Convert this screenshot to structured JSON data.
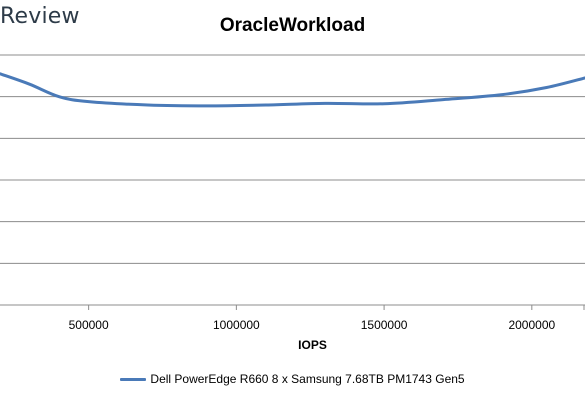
{
  "logo": {
    "text": "Review"
  },
  "chart_data": {
    "type": "line",
    "title": "OracleWorkload",
    "xlabel": "IOPS",
    "ylabel": "",
    "xlim": [
      200000,
      2180000
    ],
    "ylim": [
      0,
      6
    ],
    "xticks": [
      500000,
      1000000,
      1500000,
      2000000
    ],
    "xtick_labels": [
      "500000",
      "1000000",
      "1500000",
      "2000000"
    ],
    "grid": true,
    "legend_position": "bottom",
    "series": [
      {
        "name": "Dell PowerEdge R660 8 x Samsung 7.68TB PM1743 Gen5",
        "color": "#4a7ab8",
        "x": [
          200000,
          300000,
          400000,
          500000,
          700000,
          900000,
          1100000,
          1300000,
          1500000,
          1700000,
          1900000,
          2050000,
          2180000
        ],
        "y": [
          5.55,
          5.3,
          5.0,
          4.88,
          4.8,
          4.78,
          4.8,
          4.84,
          4.83,
          4.93,
          5.05,
          5.22,
          5.45
        ]
      }
    ]
  }
}
